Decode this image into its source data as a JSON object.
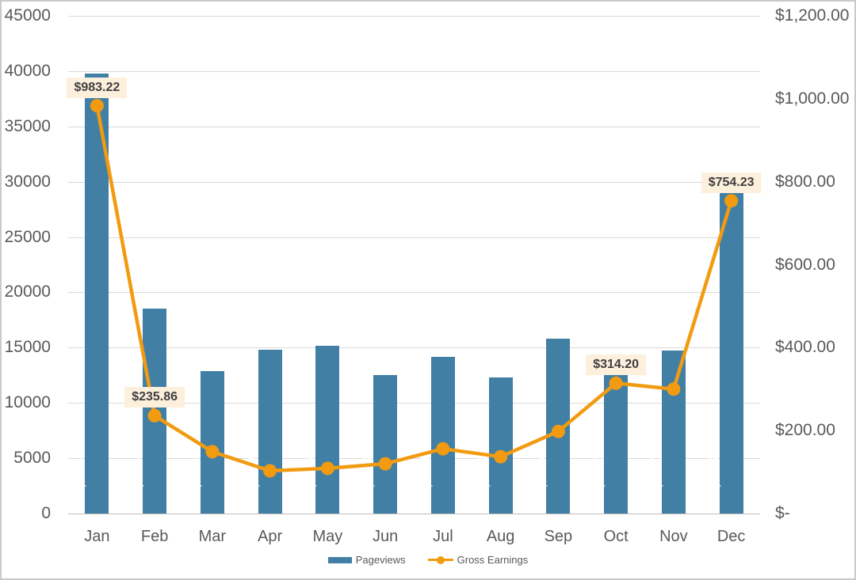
{
  "colors": {
    "bar": "#417fa5",
    "line": "#f29b11",
    "point_label_bg": "#fcefdc",
    "point_label_text": "#3f3f3f",
    "axis_text": "#595959",
    "gridline": "#d9d9d9",
    "axis_line": "#bfbfbf",
    "bar_value_text": "#ffffff"
  },
  "legend": {
    "items": [
      {
        "label": "Pageviews",
        "marker": "bar"
      },
      {
        "label": "Gross Earnings",
        "marker": "line-dot"
      }
    ]
  },
  "chart_data": {
    "type": "combo-bar-line",
    "categories": [
      "Jan",
      "Feb",
      "Mar",
      "Apr",
      "May",
      "Jun",
      "Jul",
      "Aug",
      "Sep",
      "Oct",
      "Nov",
      "Dec"
    ],
    "series": [
      {
        "name": "Pageviews",
        "type": "bar",
        "axis": "left",
        "values": [
          39794,
          18534,
          12874,
          14819,
          15196,
          12523,
          14170,
          12338,
          15825,
          14372,
          14742,
          29868
        ],
        "value_labels": [
          "39,794",
          "18,534",
          "12,874",
          "14,819",
          "15,196",
          "12,523",
          "14,170",
          "12,338",
          "15,825",
          "14,372",
          "14,742",
          "29,868"
        ]
      },
      {
        "name": "Gross Earnings",
        "type": "line",
        "axis": "right",
        "values": [
          983.22,
          235.86,
          149,
          103,
          109,
          120,
          156,
          137,
          198,
          314.2,
          300,
          754.23
        ],
        "point_labels": {
          "0": "$983.22",
          "1": "$235.86",
          "9": "$314.20",
          "11": "$754.23"
        }
      }
    ],
    "left_axis": {
      "min": 0,
      "max": 45000,
      "step": 5000,
      "tick_labels_top_to_bottom": [
        "45000",
        "40000",
        "35000",
        "30000",
        "25000",
        "20000",
        "15000",
        "10000",
        "5000",
        "0"
      ]
    },
    "right_axis": {
      "min": 0,
      "max": 1200,
      "step": 200,
      "tick_labels_top_to_bottom": [
        "$1,200.00",
        "$1,000.00",
        "$800.00",
        "$600.00",
        "$400.00",
        "$200.00",
        "$-"
      ]
    },
    "grid": true,
    "legend_position": "bottom"
  }
}
